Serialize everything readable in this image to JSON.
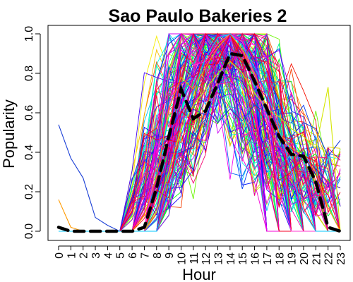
{
  "chart_data": {
    "type": "line",
    "title": "Sao Paulo Bakeries 2",
    "xlabel": "Hour",
    "ylabel": "Popularity",
    "xlim": [
      0,
      23
    ],
    "ylim": [
      0,
      1.0
    ],
    "x_ticks": [
      "0",
      "1",
      "2",
      "3",
      "4",
      "5",
      "6",
      "7",
      "8",
      "9",
      "10",
      "11",
      "12",
      "13",
      "14",
      "15",
      "16",
      "17",
      "18",
      "19",
      "20",
      "21",
      "22",
      "23"
    ],
    "y_ticks": [
      "0.0",
      "0.2",
      "0.4",
      "0.6",
      "0.8",
      "1.0"
    ],
    "grid": false,
    "legend": "none",
    "x": [
      0,
      1,
      2,
      3,
      4,
      5,
      6,
      7,
      8,
      9,
      10,
      11,
      12,
      13,
      14,
      15,
      16,
      17,
      18,
      19,
      20,
      21,
      22,
      23
    ],
    "series_count": 160,
    "series_palette": "rainbow",
    "average": {
      "style": "black-dashed-thick",
      "values": [
        0.02,
        0.0,
        0.0,
        0.0,
        0.0,
        0.0,
        0.0,
        0.02,
        0.22,
        0.48,
        0.72,
        0.57,
        0.61,
        0.75,
        0.9,
        0.89,
        0.76,
        0.62,
        0.48,
        0.39,
        0.38,
        0.25,
        0.02,
        0.0
      ]
    },
    "series": [
      {
        "color": "#1a3fd6",
        "values": [
          0.54,
          0.37,
          0.27,
          0.07,
          0.03,
          0.0,
          0.0,
          0.0,
          0.0,
          0.4,
          0.4,
          0.43,
          0.62,
          0.55,
          0.62,
          0.56,
          0.64,
          0.6,
          0.62,
          0.48,
          0.55,
          0.52,
          0.38,
          0.46
        ]
      },
      {
        "color": "#ff9a00",
        "values": [
          0.16,
          0.02,
          0.0,
          0.0,
          0.0,
          0.0,
          0.0,
          0.08,
          0.28,
          0.62,
          0.78,
          0.72,
          0.83,
          0.93,
          1.0,
          0.92,
          0.8,
          0.62,
          0.5,
          0.42,
          0.38,
          0.3,
          0.12,
          0.0
        ]
      },
      {
        "color": "#d4e600",
        "values": [
          0.0,
          0.0,
          0.0,
          0.0,
          0.0,
          0.0,
          0.0,
          0.0,
          0.1,
          0.3,
          0.52,
          0.64,
          0.72,
          0.8,
          0.86,
          0.8,
          0.7,
          0.62,
          0.58,
          0.52,
          0.48,
          0.42,
          0.73,
          0.0
        ]
      },
      {
        "color": "#ff3ad0",
        "values": [
          0.0,
          0.0,
          0.0,
          0.0,
          0.0,
          0.0,
          0.0,
          0.0,
          0.35,
          0.8,
          0.98,
          0.84,
          0.86,
          0.95,
          1.0,
          0.96,
          0.78,
          0.56,
          0.2,
          0.0,
          0.0,
          0.0,
          0.0,
          0.0
        ]
      },
      {
        "color": "#00c8ff",
        "values": [
          0.0,
          0.0,
          0.0,
          0.0,
          0.0,
          0.0,
          0.0,
          0.0,
          0.0,
          0.2,
          0.48,
          0.7,
          0.88,
          0.98,
          1.0,
          0.94,
          0.83,
          0.7,
          0.52,
          0.3,
          0.1,
          0.0,
          0.0,
          0.0
        ]
      }
    ]
  }
}
